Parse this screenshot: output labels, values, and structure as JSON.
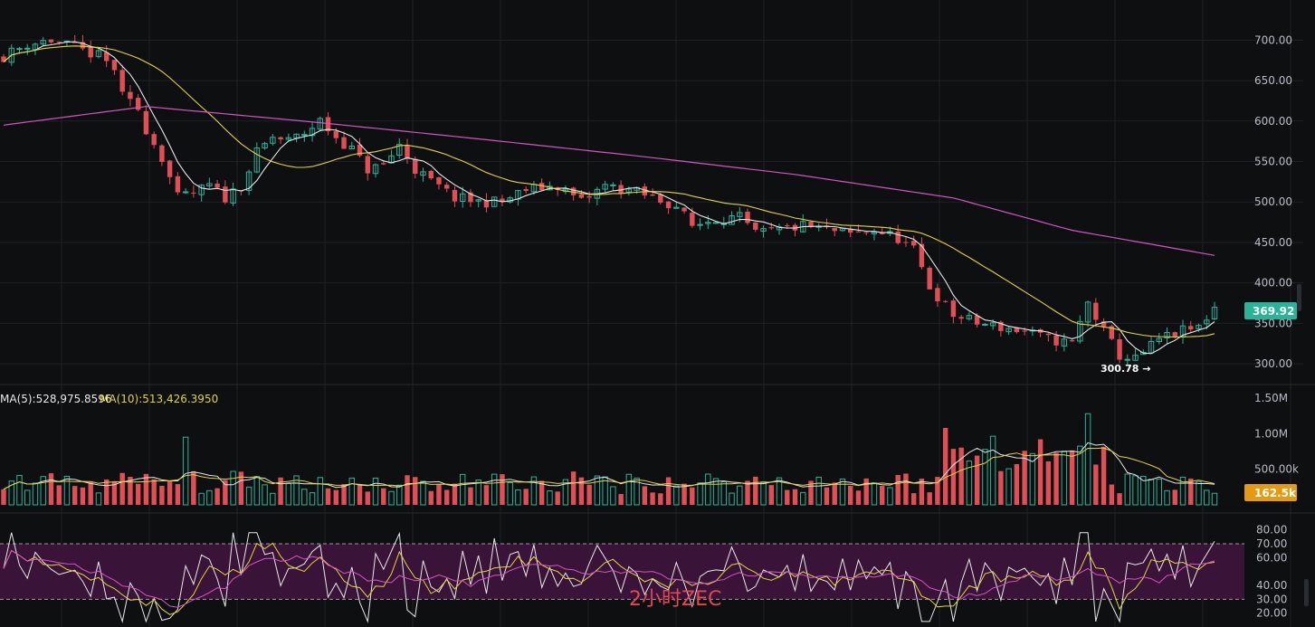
{
  "colors": {
    "background": "#0e0f11",
    "grid": "#1f2126",
    "up": "#2bb39a",
    "down": "#e04f56",
    "ma5_price": "#e8e8e8",
    "ma20_price": "#e3d43a",
    "ma100_price": "#d454c4",
    "rsi_band": "#3a1438",
    "rsi_line1": "#e8e8e8",
    "rsi_line2": "#e3d43a",
    "rsi_line3": "#d454c4",
    "price_tag": "#2bb39a",
    "volume_tag": "#e49a12",
    "watermark": "#e0474f"
  },
  "watermark": "2小时ZEC",
  "price_axis": {
    "ticks": [
      "700.00",
      "650.00",
      "600.00",
      "550.00",
      "500.00",
      "450.00",
      "400.00",
      "350.00",
      "300.00"
    ]
  },
  "volume_axis": {
    "ticks": [
      "1.50M",
      "1.00M",
      "500.00k"
    ]
  },
  "rsi_axis": {
    "ticks": [
      "80.00",
      "70.00",
      "60.00",
      "40.00",
      "30.00",
      "20.00"
    ]
  },
  "current_price_label": "369.92",
  "current_volume_label": "162.5k",
  "low_marker": "300.78 →",
  "volume_ma_legend": {
    "ma5": "MA(5):528,975.8596",
    "ma10": "MA(10):513,426.3950"
  },
  "chart_data": [
    {
      "type": "candlestick",
      "panel": "price",
      "y_range": [
        280,
        725
      ],
      "anchors": [
        [
          0,
          680
        ],
        [
          3,
          695
        ],
        [
          6,
          700
        ],
        [
          9,
          690
        ],
        [
          12,
          680
        ],
        [
          14,
          665
        ],
        [
          15,
          630
        ],
        [
          17,
          615
        ],
        [
          18,
          590
        ],
        [
          20,
          555
        ],
        [
          22,
          505
        ],
        [
          24,
          510
        ],
        [
          26,
          520
        ],
        [
          28,
          505
        ],
        [
          30,
          520
        ],
        [
          32,
          560
        ],
        [
          34,
          580
        ],
        [
          36,
          575
        ],
        [
          38,
          585
        ],
        [
          40,
          600
        ],
        [
          42,
          580
        ],
        [
          44,
          565
        ],
        [
          46,
          540
        ],
        [
          48,
          545
        ],
        [
          50,
          570
        ],
        [
          52,
          540
        ],
        [
          54,
          525
        ],
        [
          57,
          505
        ],
        [
          60,
          500
        ],
        [
          63,
          500
        ],
        [
          66,
          515
        ],
        [
          70,
          520
        ],
        [
          73,
          500
        ],
        [
          76,
          520
        ],
        [
          79,
          515
        ],
        [
          82,
          505
        ],
        [
          85,
          495
        ],
        [
          87,
          470
        ],
        [
          90,
          480
        ],
        [
          93,
          480
        ],
        [
          95,
          460
        ],
        [
          98,
          465
        ],
        [
          101,
          470
        ],
        [
          104,
          465
        ],
        [
          107,
          460
        ],
        [
          110,
          465
        ],
        [
          113,
          455
        ],
        [
          115,
          440
        ],
        [
          117,
          395
        ],
        [
          120,
          360
        ],
        [
          123,
          350
        ],
        [
          126,
          345
        ],
        [
          129,
          340
        ],
        [
          132,
          330
        ],
        [
          135,
          325
        ],
        [
          137,
          375
        ],
        [
          139,
          340
        ],
        [
          141,
          310
        ],
        [
          143,
          305
        ],
        [
          146,
          330
        ],
        [
          149,
          340
        ],
        [
          151,
          345
        ],
        [
          153,
          370
        ]
      ],
      "seed": 11,
      "ma5_color": "#e8e8e8",
      "ma20_color": "#e3d43a",
      "ma100_curve": [
        [
          0,
          595
        ],
        [
          18,
          618
        ],
        [
          40,
          598
        ],
        [
          60,
          578
        ],
        [
          80,
          557
        ],
        [
          100,
          534
        ],
        [
          120,
          505
        ],
        [
          135,
          465
        ],
        [
          153,
          434
        ]
      ],
      "last_price": 369.92,
      "low": 300.78
    },
    {
      "type": "bar",
      "panel": "volume",
      "y_range": [
        0,
        1600000
      ],
      "series": [
        {
          "name": "MA(5)",
          "value": 528975.8596
        },
        {
          "name": "MA(10)",
          "value": 513426.395
        }
      ],
      "last_volume": 162500
    },
    {
      "type": "line",
      "panel": "rsi",
      "y_range": [
        10,
        85
      ],
      "band": [
        30,
        70
      ],
      "ticks": [
        80,
        70,
        60,
        40,
        30,
        20
      ]
    }
  ]
}
